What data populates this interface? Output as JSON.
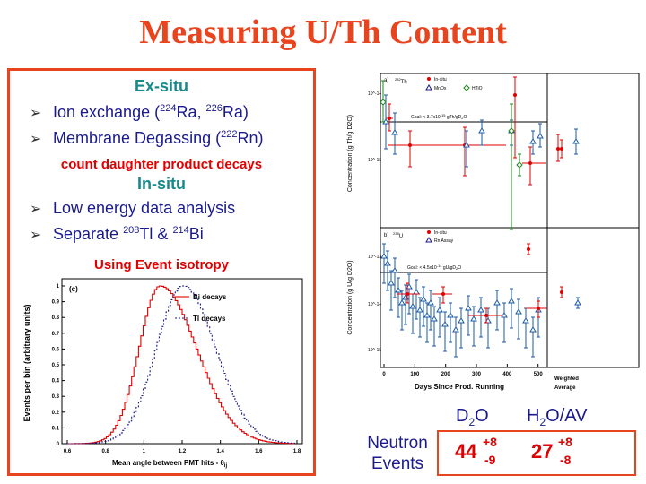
{
  "title": "Measuring U/Th Content",
  "left": {
    "exsitu_heading": "Ex-situ",
    "bullet1_pre": "Ion exchange (",
    "bullet1_sup1": "224",
    "bullet1_mid": "Ra, ",
    "bullet1_sup2": "226",
    "bullet1_post": "Ra)",
    "bullet2_pre": "Membrane Degassing (",
    "bullet2_sup": "222",
    "bullet2_post": "Rn)",
    "count_note": "count daughter product decays",
    "insitu_heading": "In-situ",
    "bullet3": "Low energy data analysis",
    "bullet4_pre": "Separate ",
    "bullet4_sup1": "208",
    "bullet4_mid": "Tl & ",
    "bullet4_sup2": "214",
    "bullet4_post": "Bi",
    "isotropy_heading": "Using Event isotropy"
  },
  "isotropy_plot": {
    "panel_label": "(c)",
    "ylabel": "Events per bin (arbitrary units)",
    "xlabel": "Mean angle between PMT hits - θ_ij",
    "xlabel_main": "Mean angle between PMT hits - θ",
    "xlabel_sub": "ij",
    "legend_bi": "Bi decays",
    "legend_tl": "Tl decays",
    "xticks": [
      "0.6",
      "0.8",
      "1",
      "1.2",
      "1.4",
      "1.6",
      "1.8"
    ],
    "yticks": [
      "0",
      "0.1",
      "0.2",
      "0.3",
      "0.4",
      "0.5",
      "0.6",
      "0.7",
      "0.8",
      "0.9",
      "1"
    ]
  },
  "th_plot": {
    "panel_label": "a)",
    "isotope_sup": "232",
    "isotope": "Th",
    "legend": [
      "In-situ",
      "MnOx",
      "HTiO"
    ],
    "goal": "Goal: < 3.7x10^-15 g Th/g D2O",
    "goal_text": "Goal: < 3.7x10",
    "goal_exp": "-15",
    "goal_unit": " gTh/gD",
    "goal_sub": "2",
    "goal_end": "O",
    "ylabel": "Concentration (g Th/g D2O)",
    "yticks": [
      "10^-14",
      "10^-15"
    ]
  },
  "u_plot": {
    "panel_label": "b)",
    "isotope_sup": "238",
    "isotope": "U",
    "legend": [
      "In-situ",
      "Rn Assay"
    ],
    "goal_text": "Goal: < 4.5x10",
    "goal_exp": "-14",
    "goal_unit": " gU/gD",
    "goal_sub": "2",
    "goal_end": "O",
    "ylabel": "Concentration (g U/g D2O)",
    "yticks": [
      "10^-13",
      "10^-14",
      "10^-15"
    ],
    "xticks": [
      "0",
      "100",
      "200",
      "300",
      "400",
      "500"
    ],
    "xlabel": "Days Since Prod. Running",
    "weighted_label1": "Weighted",
    "weighted_label2": "Average"
  },
  "neutron": {
    "label_line1": "Neutron",
    "label_line2": "Events",
    "col1_head": "D2O",
    "col1_head_main": "D",
    "col1_head_sub": "2",
    "col1_head_end": "O",
    "col2_head_main": "H",
    "col2_head_sub": "2",
    "col2_head_end": "O/AV",
    "d2o_value": "44",
    "d2o_plus": "+8",
    "d2o_minus": "-9",
    "h2o_value": "27",
    "h2o_plus": "+8",
    "h2o_minus": "-8"
  },
  "colors": {
    "accent": "#e8441e",
    "navy": "#1a1a8c",
    "teal": "#188a8a",
    "red": "#e00000"
  }
}
